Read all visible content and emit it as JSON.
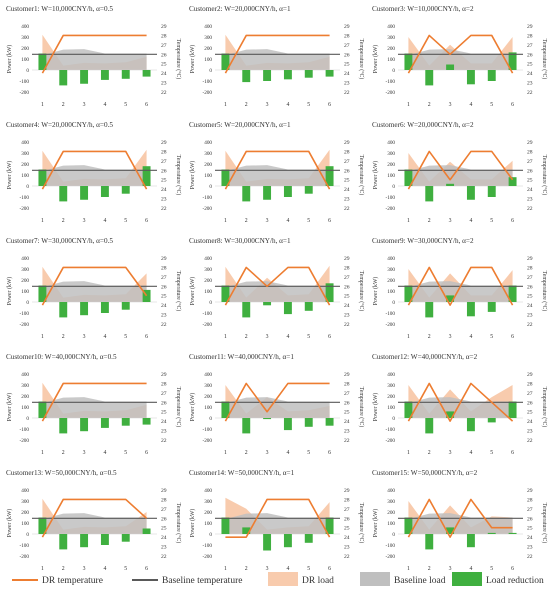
{
  "chart_data": {
    "type": "grid",
    "axes": {
      "x_ticks": [
        "1",
        "2",
        "3",
        "4",
        "5",
        "6"
      ],
      "y_left_label": "Power (kW)",
      "y_left_range": [
        -200,
        400
      ],
      "y_left_ticks": [
        "400",
        "300",
        "200",
        "100",
        "0",
        "-100",
        "-200"
      ],
      "y_right_label": "Temperature (°C)",
      "y_right_range": [
        22,
        29
      ],
      "y_right_ticks": [
        "29",
        "28",
        "27",
        "26",
        "25",
        "24",
        "23",
        "22"
      ]
    },
    "baseline_temperature": 26,
    "baseline_load": [
      135,
      185,
      190,
      150,
      150,
      150
    ],
    "colors": {
      "dr_temperature": "#ED7D31",
      "baseline_temperature": "#595959",
      "dr_load": "#F8CBAD",
      "baseline_load": "#BFBFBF",
      "load_reduction": "#3FAF3F"
    },
    "panels": [
      {
        "title": "Customer1:  W=10,000CNY/h, α=0.5",
        "dr_temperature": [
          24,
          28,
          28,
          28,
          28,
          28
        ],
        "dr_load": [
          320,
          40,
          65,
          60,
          70,
          120
        ],
        "load_reduction": [
          150,
          -140,
          -125,
          -90,
          -80,
          -60
        ]
      },
      {
        "title": "Customer2:  W=20,000CNY/h, α=1",
        "dr_temperature": [
          24,
          28,
          28,
          28,
          28,
          28
        ],
        "dr_load": [
          320,
          40,
          65,
          60,
          70,
          120
        ],
        "load_reduction": [
          150,
          -110,
          -100,
          -85,
          -70,
          -60
        ]
      },
      {
        "title": "Customer3:  W=10,000CNY/h, α=2",
        "dr_temperature": [
          24,
          28,
          26,
          28,
          28,
          24
        ],
        "dr_load": [
          300,
          40,
          230,
          60,
          60,
          300
        ],
        "load_reduction": [
          150,
          -140,
          50,
          -130,
          -100,
          160
        ]
      },
      {
        "title": "Customer4:  W=20,000CNY/h, α=0.5",
        "dr_temperature": [
          24,
          28,
          28,
          28,
          28,
          24
        ],
        "dr_load": [
          320,
          40,
          65,
          60,
          70,
          330
        ],
        "load_reduction": [
          150,
          -140,
          -125,
          -100,
          -70,
          180
        ]
      },
      {
        "title": "Customer5:  W=20,000CNY/h, α=1",
        "dr_temperature": [
          24,
          28,
          28,
          28,
          28,
          24
        ],
        "dr_load": [
          320,
          40,
          65,
          60,
          70,
          330
        ],
        "load_reduction": [
          150,
          -140,
          -125,
          -100,
          -70,
          180
        ]
      },
      {
        "title": "Customer6:  W=20,000CNY/h, α=2",
        "dr_temperature": [
          24,
          28,
          25,
          28,
          28,
          25
        ],
        "dr_load": [
          300,
          40,
          220,
          60,
          60,
          230
        ],
        "load_reduction": [
          150,
          -140,
          20,
          -125,
          -100,
          80
        ]
      },
      {
        "title": "Customer7:  W=30,000CNY/h, α=0.5",
        "dr_temperature": [
          24,
          28,
          28,
          28,
          28,
          25
        ],
        "dr_load": [
          320,
          40,
          65,
          60,
          70,
          260
        ],
        "load_reduction": [
          150,
          -140,
          -120,
          -100,
          -70,
          110
        ]
      },
      {
        "title": "Customer8:  W=30,000CNY/h, α=1",
        "dr_temperature": [
          24,
          28,
          26,
          28,
          28,
          24
        ],
        "dr_load": [
          320,
          40,
          220,
          60,
          70,
          330
        ],
        "load_reduction": [
          150,
          -140,
          -30,
          -110,
          -80,
          170
        ]
      },
      {
        "title": "Customer9:  W=30,000CNY/h, α=2",
        "dr_temperature": [
          24,
          28,
          24,
          28,
          28,
          24
        ],
        "dr_load": [
          300,
          40,
          260,
          60,
          60,
          290
        ],
        "load_reduction": [
          150,
          -140,
          60,
          -130,
          -90,
          150
        ]
      },
      {
        "title": "Customer10:  W=40,000CNY/h, α=0.5",
        "dr_temperature": [
          24,
          28,
          28,
          28,
          28,
          28
        ],
        "dr_load": [
          320,
          40,
          65,
          60,
          70,
          120
        ],
        "load_reduction": [
          150,
          -140,
          -120,
          -90,
          -70,
          -60
        ]
      },
      {
        "title": "Customer11:  W=40,000CNY/h, α=1",
        "dr_temperature": [
          24,
          28,
          25,
          28,
          28,
          28
        ],
        "dr_load": [
          300,
          40,
          190,
          60,
          70,
          110
        ],
        "load_reduction": [
          150,
          -140,
          -10,
          -110,
          -80,
          -70
        ]
      },
      {
        "title": "Customer12:  W=40,000CNY/h, α=2",
        "dr_temperature": [
          24,
          28,
          24,
          28,
          26,
          24
        ],
        "dr_load": [
          300,
          40,
          260,
          60,
          190,
          300
        ],
        "load_reduction": [
          150,
          -140,
          60,
          -120,
          -40,
          150
        ]
      },
      {
        "title": "Customer13:  W=50,000CNY/h, α=0.5",
        "dr_temperature": [
          24,
          28,
          28,
          28,
          28,
          26
        ],
        "dr_load": [
          320,
          40,
          65,
          60,
          70,
          200
        ],
        "load_reduction": [
          150,
          -140,
          -120,
          -100,
          -70,
          50
        ]
      },
      {
        "title": "Customer14:  W=50,000CNY/h, α=1",
        "dr_temperature": [
          24,
          24,
          28,
          28,
          28,
          24
        ],
        "dr_load": [
          330,
          230,
          40,
          60,
          70,
          290
        ],
        "load_reduction": [
          150,
          60,
          -150,
          -120,
          -80,
          150
        ]
      },
      {
        "title": "Customer15:  W=50,000CNY/h, α=2",
        "dr_temperature": [
          24,
          28,
          24,
          28,
          25,
          25
        ],
        "dr_load": [
          300,
          40,
          260,
          60,
          160,
          150
        ],
        "load_reduction": [
          150,
          -140,
          60,
          -120,
          10,
          10
        ]
      }
    ],
    "legend": [
      {
        "key": "dr_temperature",
        "label": "DR temperature",
        "kind": "line"
      },
      {
        "key": "baseline_temperature",
        "label": "Baseline temperature",
        "kind": "line"
      },
      {
        "key": "dr_load",
        "label": "DR load",
        "kind": "area"
      },
      {
        "key": "baseline_load",
        "label": "Baseline load",
        "kind": "area"
      },
      {
        "key": "load_reduction",
        "label": "Load reduction",
        "kind": "bar"
      }
    ],
    "legend_position": "bottom"
  }
}
